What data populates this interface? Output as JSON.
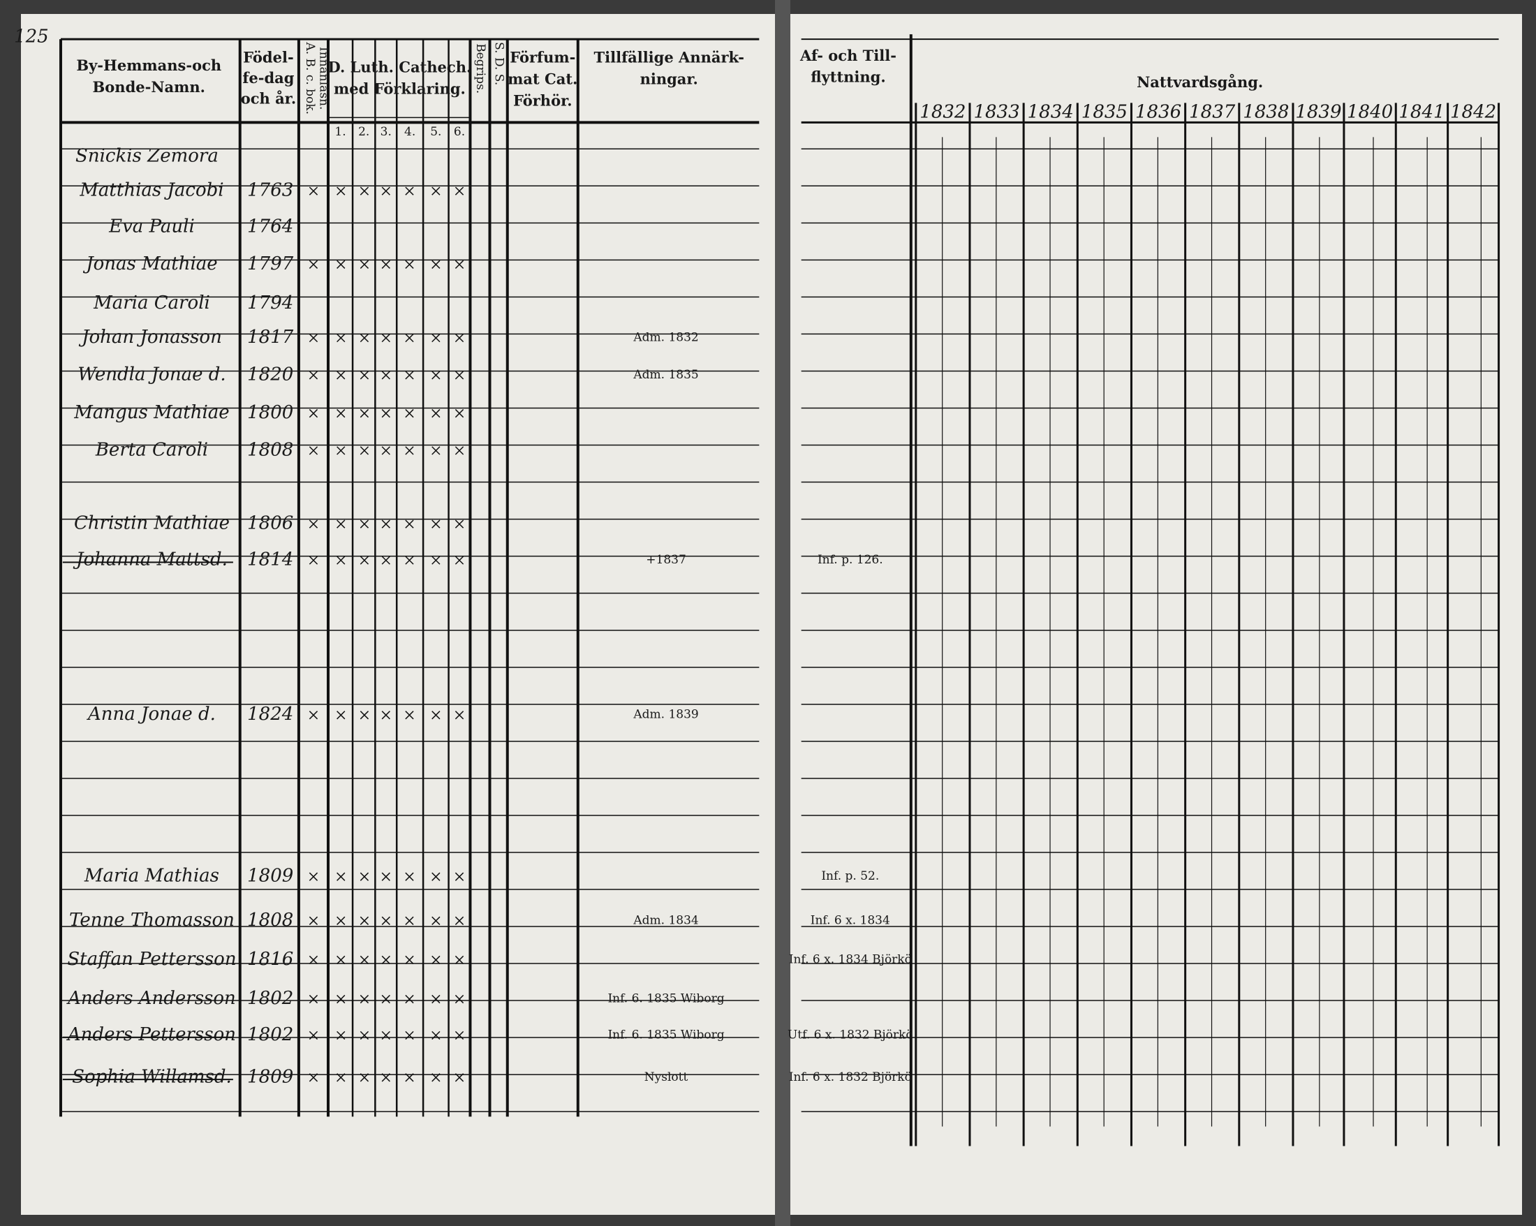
{
  "page_number": "125",
  "left_headers": {
    "name": [
      "By-Hemmans-och",
      "Bonde-Namn."
    ],
    "birth": [
      "Födel-",
      "fe-dag",
      "och år."
    ],
    "abc": [
      "A. B. c. bok.",
      "Innanläsn."
    ],
    "cathech": [
      "D. Luth. Cathech.",
      "med Förklaring."
    ],
    "cathech_columns": [
      "1.",
      "2.",
      "3.",
      "4.",
      "5.",
      "6."
    ],
    "begrips": "Begrips.",
    "sds": "S. D. S.",
    "forfum": [
      "Förfum-",
      "mat Cat.",
      "Förhör."
    ],
    "remarks": [
      "Tillfällige Annärk-",
      "ningar."
    ]
  },
  "right_headers": {
    "moves": [
      "Af- och Till-",
      "flyttning."
    ],
    "communion": "Nattvardsgång.",
    "years": [
      "1832",
      "1833",
      "1834",
      "1835",
      "1836",
      "1837",
      "1838",
      "1839",
      "1840",
      "1841",
      "1842"
    ]
  },
  "heading": "Snickis Zemora",
  "rows": [
    {
      "name": "Matthias Jacobi",
      "birth": "1763"
    },
    {
      "name": "Eva Pauli",
      "birth": "1764"
    },
    {
      "name": "Jonas Mathiae",
      "birth": "1797"
    },
    {
      "name": "Maria Caroli",
      "birth": "1794"
    },
    {
      "name": "Johan Jonasson",
      "birth": "1817",
      "remark": "Adm. 1832"
    },
    {
      "name": "Wendla Jonae d.",
      "birth": "1820",
      "remark": "Adm. 1835"
    },
    {
      "name": "Mangus Mathiae",
      "birth": "1800"
    },
    {
      "name": "Berta Caroli",
      "birth": "1808"
    },
    {
      "name": "Christin Mathiae",
      "birth": "1806"
    },
    {
      "name": "Johanna Mattsd.",
      "birth": "1814",
      "remark": "+1837",
      "move": "Inf. p. 126."
    },
    {
      "name": "Anna Jonae d.",
      "birth": "1824",
      "remark": "Adm. 1839"
    },
    {
      "name": "Maria Mathias",
      "birth": "1809",
      "move": "Inf. p. 52."
    },
    {
      "name": "Tenne Thomasson",
      "birth": "1808",
      "remark": "Adm. 1834",
      "move": "Inf. 6 x. 1834"
    },
    {
      "name": "Staffan Pettersson",
      "birth": "1816",
      "move": "Inf. 6 x. 1834 Björkö"
    },
    {
      "name": "Anders Andersson",
      "birth": "1802",
      "remark": "Inf. 6. 1835 Wiborg"
    },
    {
      "name": "Anders Pettersson",
      "birth": "1802",
      "remark": "Inf. 6. 1835 Wiborg",
      "move": "Utf. 6 x. 1832 Björkö"
    },
    {
      "name": "Sophia Willamsd.",
      "birth": "1809",
      "remark": "Nyslott",
      "move": "Inf. 6 x. 1832 Björkö"
    }
  ]
}
